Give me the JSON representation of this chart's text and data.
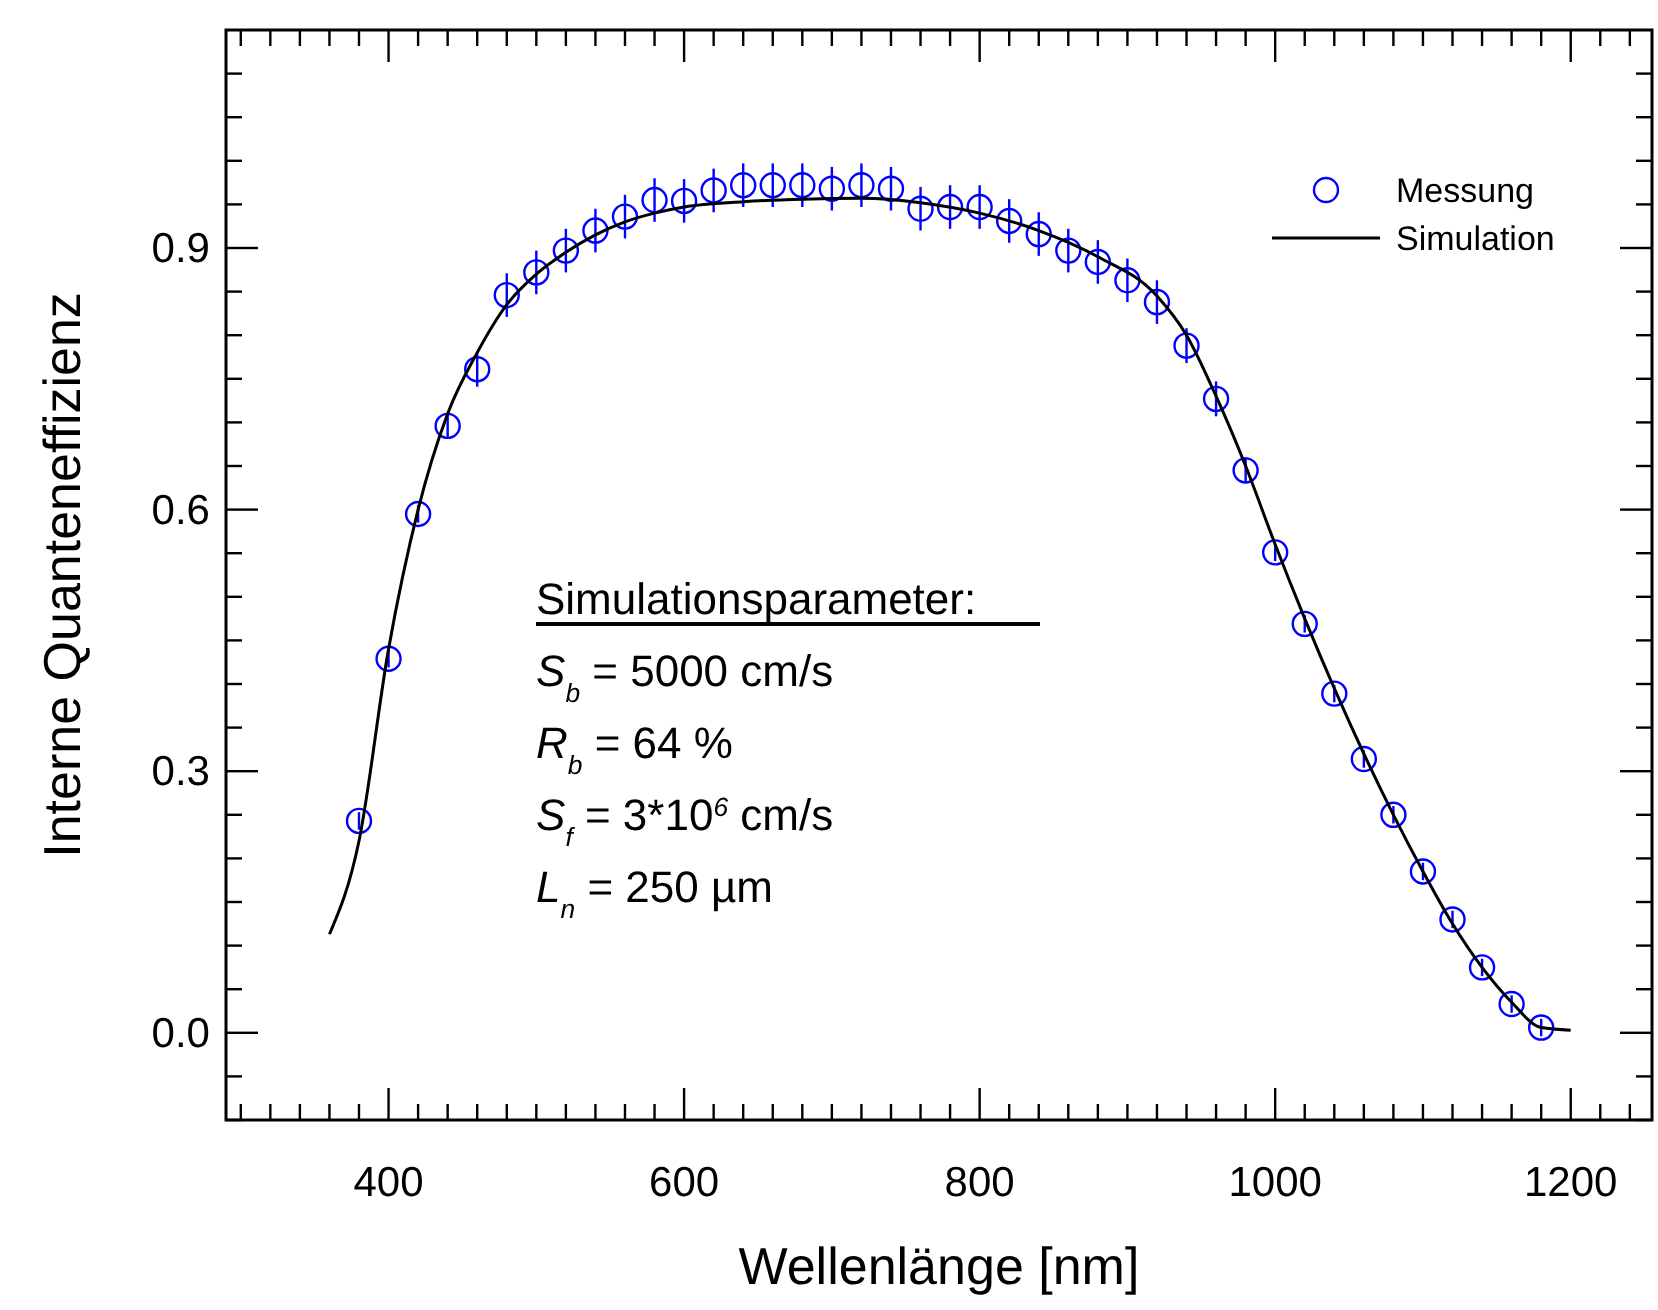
{
  "chart_data": {
    "type": "scatter",
    "xlabel": "Wellenlänge [nm]",
    "ylabel": "Interne Quanteneffizienz",
    "xlim": [
      290,
      1255
    ],
    "ylim": [
      -0.1,
      1.15
    ],
    "xticks": [
      {
        "value": 300,
        "label": null
      },
      {
        "value": 320,
        "label": null
      },
      {
        "value": 340,
        "label": null
      },
      {
        "value": 360,
        "label": null
      },
      {
        "value": 380,
        "label": null
      },
      400,
      {
        "value": 420,
        "label": null
      },
      {
        "value": 440,
        "label": null
      },
      {
        "value": 460,
        "label": null
      },
      {
        "value": 480,
        "label": null
      },
      {
        "value": 500,
        "label": null
      },
      {
        "value": 520,
        "label": null
      },
      {
        "value": 540,
        "label": null
      },
      {
        "value": 560,
        "label": null
      },
      {
        "value": 580,
        "label": null
      },
      600,
      {
        "value": 620,
        "label": null
      },
      {
        "value": 640,
        "label": null
      },
      {
        "value": 660,
        "label": null
      },
      {
        "value": 680,
        "label": null
      },
      {
        "value": 700,
        "label": null
      },
      {
        "value": 720,
        "label": null
      },
      {
        "value": 740,
        "label": null
      },
      {
        "value": 760,
        "label": null
      },
      {
        "value": 780,
        "label": null
      },
      800,
      {
        "value": 820,
        "label": null
      },
      {
        "value": 840,
        "label": null
      },
      {
        "value": 860,
        "label": null
      },
      {
        "value": 880,
        "label": null
      },
      {
        "value": 900,
        "label": null
      },
      {
        "value": 920,
        "label": null
      },
      {
        "value": 940,
        "label": null
      },
      {
        "value": 960,
        "label": null
      },
      {
        "value": 980,
        "label": null
      },
      1000,
      {
        "value": 1020,
        "label": null
      },
      {
        "value": 1040,
        "label": null
      },
      {
        "value": 1060,
        "label": null
      },
      {
        "value": 1080,
        "label": null
      },
      {
        "value": 1100,
        "label": null
      },
      {
        "value": 1120,
        "label": null
      },
      {
        "value": 1140,
        "label": null
      },
      {
        "value": 1160,
        "label": null
      },
      {
        "value": 1180,
        "label": null
      },
      1200,
      {
        "value": 1220,
        "label": null
      },
      {
        "value": 1240,
        "label": null
      }
    ],
    "yticks": [
      {
        "value": -0.1,
        "label": null
      },
      {
        "value": -0.05,
        "label": null
      },
      {
        "value": 0,
        "label": "0.0"
      },
      {
        "value": 0.05,
        "label": null
      },
      {
        "value": 0.1,
        "label": null
      },
      {
        "value": 0.15,
        "label": null
      },
      {
        "value": 0.2,
        "label": null
      },
      {
        "value": 0.25,
        "label": null
      },
      0.3,
      {
        "value": 0.35,
        "label": null
      },
      {
        "value": 0.4,
        "label": null
      },
      {
        "value": 0.45,
        "label": null
      },
      {
        "value": 0.5,
        "label": null
      },
      {
        "value": 0.55,
        "label": null
      },
      0.6,
      {
        "value": 0.65,
        "label": null
      },
      {
        "value": 0.7,
        "label": null
      },
      {
        "value": 0.75,
        "label": null
      },
      {
        "value": 0.8,
        "label": null
      },
      {
        "value": 0.85,
        "label": null
      },
      0.9,
      {
        "value": 0.95,
        "label": null
      },
      {
        "value": 1.0,
        "label": null
      },
      {
        "value": 1.05,
        "label": null
      },
      {
        "value": 1.1,
        "label": null
      }
    ],
    "grid": false,
    "legend": "top right",
    "annotations": [
      "Simulationsparameter:",
      "S$_{b}$ = 5000 cm/s",
      "R$_{b}$ = 64 %",
      "S$_{f}$ = 3*10$^{6}$ cm/s",
      "L$_{n}$ = 250 µm"
    ],
    "series": [
      {
        "name": "Messung",
        "marker": "circle",
        "color": "#0000ff",
        "x": [
          380,
          400,
          420,
          440,
          460,
          480,
          500,
          520,
          540,
          560,
          580,
          600,
          620,
          640,
          660,
          680,
          700,
          720,
          740,
          760,
          780,
          800,
          820,
          840,
          860,
          880,
          900,
          920,
          940,
          960,
          980,
          1000,
          1020,
          1040,
          1060,
          1080,
          1100,
          1120,
          1140,
          1160,
          1180
        ],
        "values": [
          0.243,
          0.429,
          0.595,
          0.696,
          0.761,
          0.846,
          0.872,
          0.897,
          0.92,
          0.936,
          0.955,
          0.954,
          0.966,
          0.972,
          0.972,
          0.972,
          0.968,
          0.972,
          0.968,
          0.945,
          0.947,
          0.947,
          0.931,
          0.916,
          0.897,
          0.884,
          0.863,
          0.838,
          0.788,
          0.727,
          0.645,
          0.551,
          0.469,
          0.389,
          0.314,
          0.25,
          0.185,
          0.13,
          0.075,
          0.033,
          0.006
        ],
        "errors": [
          0.01,
          0.01,
          0.01,
          0.015,
          0.02,
          0.025,
          0.025,
          0.025,
          0.025,
          0.025,
          0.025,
          0.025,
          0.025,
          0.025,
          0.025,
          0.025,
          0.025,
          0.025,
          0.025,
          0.025,
          0.025,
          0.025,
          0.025,
          0.025,
          0.025,
          0.025,
          0.025,
          0.025,
          0.02,
          0.02,
          0.015,
          0.01,
          0.01,
          0.01,
          0.01,
          0.01,
          0.01,
          0.01,
          0.01,
          0.01,
          0.01
        ]
      },
      {
        "name": "Simulation",
        "type": "line",
        "color": "#000000",
        "x": [
          360,
          380,
          400,
          420,
          440,
          460,
          480,
          500,
          520,
          540,
          560,
          580,
          600,
          640,
          680,
          720,
          760,
          800,
          840,
          880,
          920,
          940,
          960,
          980,
          1000,
          1020,
          1040,
          1060,
          1080,
          1100,
          1120,
          1140,
          1160,
          1180,
          1200
        ],
        "values": [
          0.113,
          0.22,
          0.44,
          0.6,
          0.71,
          0.78,
          0.835,
          0.87,
          0.895,
          0.915,
          0.93,
          0.94,
          0.947,
          0.953,
          0.956,
          0.957,
          0.952,
          0.94,
          0.92,
          0.89,
          0.845,
          0.8,
          0.73,
          0.65,
          0.56,
          0.475,
          0.395,
          0.32,
          0.25,
          0.185,
          0.125,
          0.075,
          0.035,
          0.006,
          0.003
        ]
      }
    ]
  }
}
